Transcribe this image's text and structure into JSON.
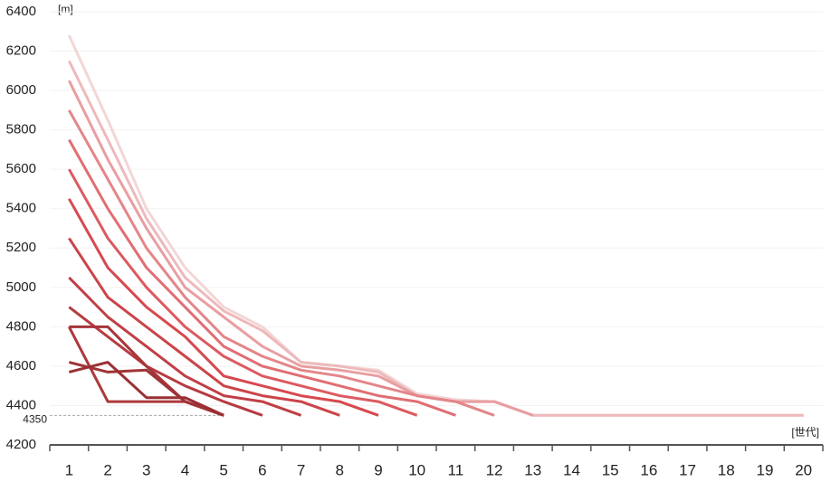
{
  "chart_data": {
    "type": "line",
    "y_label": "[m]",
    "x_label": "[世代]",
    "categories": [
      "1",
      "2",
      "3",
      "4",
      "5",
      "6",
      "7",
      "8",
      "9",
      "10",
      "11",
      "12",
      "13",
      "14",
      "15",
      "16",
      "17",
      "18",
      "19",
      "20"
    ],
    "ylim": [
      4200,
      6400
    ],
    "yticks": [
      4200,
      4400,
      4600,
      4800,
      5000,
      5200,
      5400,
      5600,
      5800,
      6000,
      6200,
      6400
    ],
    "grid": true,
    "reference_line": 4350,
    "series": [
      {
        "color": "#9a3034",
        "values": [
          4570,
          4620,
          4440,
          4440,
          4350,
          null,
          null,
          null,
          null,
          null,
          null,
          null,
          null,
          null,
          null,
          null,
          null,
          null,
          null,
          null
        ]
      },
      {
        "color": "#a03337",
        "values": [
          4620,
          4570,
          4580,
          4420,
          4350,
          null,
          null,
          null,
          null,
          null,
          null,
          null,
          null,
          null,
          null,
          null,
          null,
          null,
          null,
          null
        ]
      },
      {
        "color": "#a6353a",
        "values": [
          4800,
          4800,
          4600,
          4420,
          4350,
          null,
          null,
          null,
          null,
          null,
          null,
          null,
          null,
          null,
          null,
          null,
          null,
          null,
          null,
          null
        ]
      },
      {
        "color": "#ad383d",
        "values": [
          4800,
          4420,
          4420,
          4420,
          4350,
          null,
          null,
          null,
          null,
          null,
          null,
          null,
          null,
          null,
          null,
          null,
          null,
          null,
          null,
          null
        ]
      },
      {
        "color": "#b63b41",
        "values": [
          4900,
          4750,
          4600,
          4500,
          4420,
          4350,
          null,
          null,
          null,
          null,
          null,
          null,
          null,
          null,
          null,
          null,
          null,
          null,
          null,
          null
        ]
      },
      {
        "color": "#c03f45",
        "values": [
          5050,
          4850,
          4700,
          4550,
          4450,
          4420,
          4350,
          null,
          null,
          null,
          null,
          null,
          null,
          null,
          null,
          null,
          null,
          null,
          null,
          null
        ]
      },
      {
        "color": "#cb444a",
        "values": [
          5250,
          4950,
          4800,
          4650,
          4500,
          4450,
          4420,
          4350,
          null,
          null,
          null,
          null,
          null,
          null,
          null,
          null,
          null,
          null,
          null,
          null
        ]
      },
      {
        "color": "#d6494f",
        "values": [
          5450,
          5100,
          4900,
          4750,
          4550,
          4500,
          4450,
          4420,
          4350,
          null,
          null,
          null,
          null,
          null,
          null,
          null,
          null,
          null,
          null,
          null
        ]
      },
      {
        "color": "#dc5a60",
        "values": [
          5600,
          5250,
          5000,
          4800,
          4650,
          4550,
          4500,
          4450,
          4420,
          4350,
          null,
          null,
          null,
          null,
          null,
          null,
          null,
          null,
          null,
          null
        ]
      },
      {
        "color": "#e06e73",
        "values": [
          5750,
          5400,
          5100,
          4900,
          4700,
          4600,
          4550,
          4500,
          4450,
          4420,
          4350,
          null,
          null,
          null,
          null,
          null,
          null,
          null,
          null,
          null
        ]
      },
      {
        "color": "#e48589",
        "values": [
          5900,
          5550,
          5200,
          4950,
          4750,
          4650,
          4580,
          4550,
          4500,
          4450,
          4420,
          4350,
          null,
          null,
          null,
          null,
          null,
          null,
          null,
          null
        ]
      },
      {
        "color": "#e99ea1",
        "values": [
          6050,
          5650,
          5300,
          5000,
          4850,
          4700,
          4600,
          4580,
          4550,
          4450,
          4420,
          4420,
          4350,
          null,
          null,
          null,
          null,
          null,
          null,
          null
        ]
      },
      {
        "color": "#eeb9bb",
        "values": [
          6150,
          5750,
          5350,
          5050,
          4880,
          4780,
          4620,
          4600,
          4570,
          4450,
          4420,
          4420,
          4350,
          4350,
          4350,
          4350,
          4350,
          4350,
          4350,
          4350
        ]
      },
      {
        "color": "#f2d6d6",
        "values": [
          6280,
          5850,
          5400,
          5100,
          4900,
          4800,
          4620,
          4600,
          4580,
          4460,
          4430,
          4420,
          4350,
          4350,
          4350,
          4350,
          4350,
          4350,
          4350,
          4350
        ]
      }
    ]
  }
}
